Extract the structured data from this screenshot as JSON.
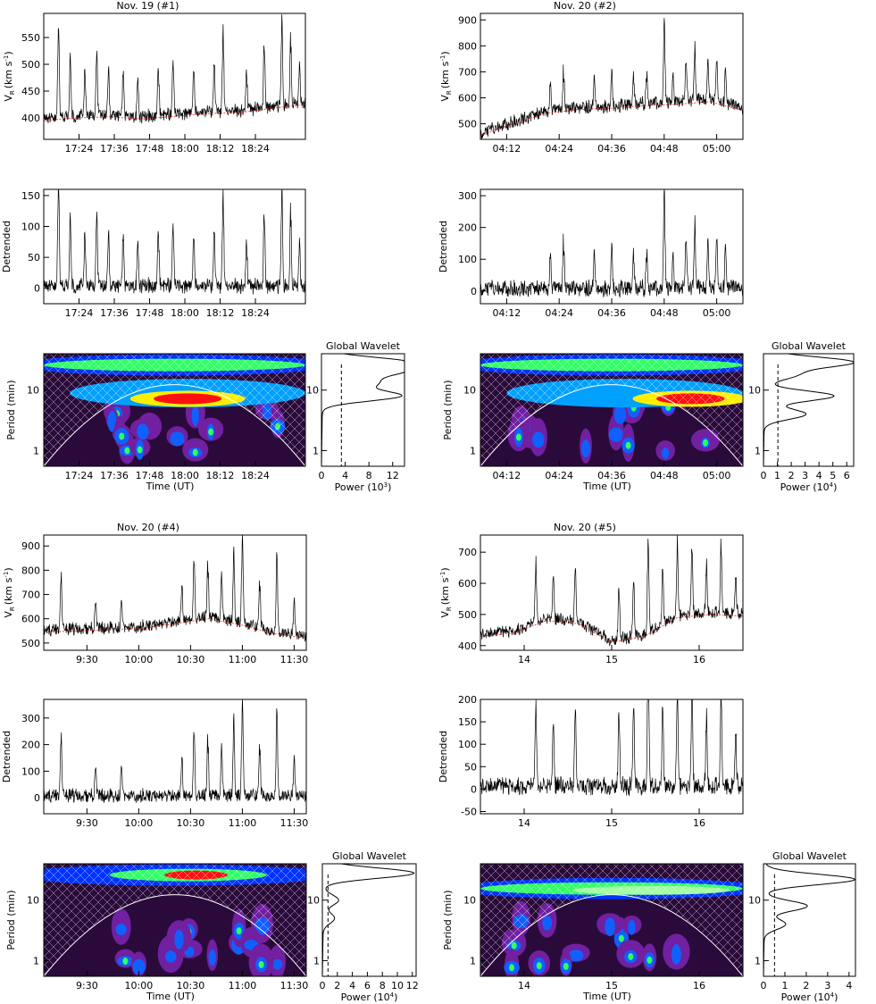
{
  "panels": [
    {
      "title": "Nov. 19 (#1)",
      "vr_ylabel": "V",
      "vr_ylabel_sub": "R",
      "vr_ylabel_unit": "(km s",
      "vr_ylabel_sup": "-1",
      "detrended_ylabel": "Detrended",
      "period_ylabel": "Period (min)",
      "time_xlabel": "Time (UT)",
      "global_title": "Global Wavelet",
      "power_xlabel": "Power (10",
      "power_sup": "3",
      "power_ticks": [
        "0",
        "4",
        "8",
        "12"
      ],
      "power_max": 14
    },
    {
      "title": "Nov. 20 (#2)",
      "vr_ylabel": "V",
      "vr_ylabel_sub": "R",
      "vr_ylabel_unit": "(km s",
      "vr_ylabel_sup": "-1",
      "detrended_ylabel": "Detrended",
      "period_ylabel": "Period (min)",
      "time_xlabel": "Time (UT)",
      "global_title": "Global Wavelet",
      "power_xlabel": "Power (10",
      "power_sup": "4",
      "power_ticks": [
        "0",
        "1",
        "2",
        "3",
        "4",
        "5",
        "6"
      ],
      "power_max": 6.5
    },
    {
      "title": "Nov. 20 (#4)",
      "vr_ylabel": "V",
      "vr_ylabel_sub": "R",
      "vr_ylabel_unit": "(km s",
      "vr_ylabel_sup": "-1",
      "detrended_ylabel": "Detrended",
      "period_ylabel": "Period (min)",
      "time_xlabel": "Time (UT)",
      "global_title": "Global Wavelet",
      "power_xlabel": "Power (10",
      "power_sup": "4",
      "power_ticks": [
        "0",
        "2",
        "4",
        "6",
        "8",
        "10",
        "12"
      ],
      "power_max": 12.5
    },
    {
      "title": "Nov. 20 (#5)",
      "vr_ylabel": "V",
      "vr_ylabel_sub": "R",
      "vr_ylabel_unit": "(km s",
      "vr_ylabel_sup": "-1",
      "detrended_ylabel": "Detrended",
      "period_ylabel": "Period (min)",
      "time_xlabel": "Time (UT)",
      "global_title": "Global Wavelet",
      "power_xlabel": "Power (10",
      "power_sup": "4",
      "power_ticks": [
        "0",
        "1",
        "2",
        "3",
        "4"
      ],
      "power_max": 4.3
    }
  ],
  "chart_data": [
    {
      "type": "line",
      "panel": "Nov. 19 (#1)",
      "x_ticks": [
        "17:24",
        "17:36",
        "17:48",
        "18:00",
        "18:12",
        "18:24"
      ],
      "x_range_min": [
        1032,
        1121
      ],
      "x_tick_min": [
        1044,
        1056,
        1068,
        1080,
        1092,
        1104
      ],
      "vr": {
        "ylim": [
          360,
          595
        ],
        "yticks": [
          400,
          450,
          500,
          550
        ],
        "base": 385,
        "trend": [
          395,
          400,
          402,
          398,
          403,
          408,
          410,
          418,
          425
        ],
        "spikes": [
          [
            1037,
            180
          ],
          [
            1041,
            110
          ],
          [
            1046,
            95
          ],
          [
            1050,
            130
          ],
          [
            1054,
            85
          ],
          [
            1059,
            95
          ],
          [
            1064,
            80
          ],
          [
            1071,
            90
          ],
          [
            1076,
            110
          ],
          [
            1083,
            85
          ],
          [
            1090,
            95
          ],
          [
            1093,
            150
          ],
          [
            1101,
            75
          ],
          [
            1107,
            120
          ],
          [
            1113,
            165
          ],
          [
            1116,
            120
          ],
          [
            1119,
            70
          ]
        ]
      },
      "detrended": {
        "ylim": [
          -25,
          160
        ],
        "yticks": [
          0,
          50,
          100,
          150
        ]
      },
      "wavelet": {
        "period_ticks": [
          "1",
          "10"
        ],
        "global_peaks": [
          [
            29,
            13.5
          ],
          [
            20,
            11
          ],
          [
            13,
            8
          ],
          [
            8,
            13
          ]
        ]
      }
    },
    {
      "type": "line",
      "panel": "Nov. 20 (#2)",
      "x_ticks": [
        "04:12",
        "04:24",
        "04:36",
        "04:48",
        "05:00"
      ],
      "x_range_min": [
        246,
        306
      ],
      "x_tick_min": [
        252,
        264,
        276,
        288,
        300
      ],
      "vr": {
        "ylim": [
          440,
          925
        ],
        "yticks": [
          500,
          600,
          700,
          800,
          900
        ],
        "base": 470,
        "trend": [
          455,
          500,
          540,
          555,
          560,
          570,
          575,
          585,
          550
        ],
        "spikes": [
          [
            262,
            110
          ],
          [
            265,
            160
          ],
          [
            272,
            120
          ],
          [
            276,
            130
          ],
          [
            281,
            110
          ],
          [
            284,
            120
          ],
          [
            288,
            330
          ],
          [
            290,
            110
          ],
          [
            293,
            160
          ],
          [
            295,
            200
          ],
          [
            298,
            160
          ],
          [
            300,
            170
          ],
          [
            302,
            130
          ]
        ]
      },
      "detrended": {
        "ylim": [
          -40,
          320
        ],
        "yticks": [
          0,
          100,
          200,
          300
        ]
      },
      "wavelet": {
        "period_ticks": [
          "1",
          "10"
        ],
        "global_peaks": [
          [
            29,
            6.3
          ],
          [
            18,
            2.2
          ],
          [
            8,
            5
          ],
          [
            4,
            3
          ]
        ]
      }
    },
    {
      "type": "line",
      "panel": "Nov. 20 (#4)",
      "x_ticks": [
        "9:30",
        "10:00",
        "10:30",
        "11:00",
        "11:30"
      ],
      "x_range_min": [
        545,
        697
      ],
      "x_tick_min": [
        570,
        600,
        630,
        660,
        690
      ],
      "vr": {
        "ylim": [
          470,
          945
        ],
        "yticks": [
          500,
          600,
          700,
          800,
          900
        ],
        "base": 535,
        "trend": [
          545,
          550,
          555,
          560,
          580,
          600,
          575,
          540,
          520
        ],
        "spikes": [
          [
            555,
            230
          ],
          [
            575,
            120
          ],
          [
            590,
            110
          ],
          [
            625,
            150
          ],
          [
            632,
            260
          ],
          [
            640,
            220
          ],
          [
            648,
            200
          ],
          [
            655,
            300
          ],
          [
            660,
            380
          ],
          [
            670,
            200
          ],
          [
            680,
            320
          ],
          [
            690,
            150
          ]
        ]
      },
      "detrended": {
        "ylim": [
          -60,
          370
        ],
        "yticks": [
          0,
          100,
          200,
          300
        ]
      },
      "wavelet": {
        "period_ticks": [
          "1",
          "10"
        ],
        "global_peaks": [
          [
            28,
            12
          ],
          [
            10,
            2
          ],
          [
            5,
            1.5
          ]
        ]
      }
    },
    {
      "type": "line",
      "panel": "Nov. 20 (#5)",
      "x_ticks": [
        "14",
        "15",
        "16"
      ],
      "x_range_min": [
        810,
        990
      ],
      "x_tick_min": [
        840,
        900,
        960
      ],
      "vr": {
        "ylim": [
          385,
          755
        ],
        "yticks": [
          400,
          500,
          600,
          700
        ],
        "base": 450,
        "trend": [
          430,
          440,
          480,
          470,
          410,
          430,
          490,
          500,
          495
        ],
        "spikes": [
          [
            848,
            220
          ],
          [
            860,
            150
          ],
          [
            875,
            180
          ],
          [
            905,
            170
          ],
          [
            915,
            180
          ],
          [
            925,
            310
          ],
          [
            935,
            200
          ],
          [
            945,
            260
          ],
          [
            955,
            230
          ],
          [
            965,
            160
          ],
          [
            975,
            230
          ],
          [
            985,
            140
          ]
        ]
      },
      "detrended": {
        "ylim": [
          -55,
          200
        ],
        "yticks": [
          -50,
          0,
          50,
          100,
          150,
          200
        ]
      },
      "wavelet": {
        "period_ticks": [
          "1",
          "10"
        ],
        "global_peaks": [
          [
            22,
            4.2
          ],
          [
            8,
            2
          ],
          [
            4,
            1
          ]
        ]
      }
    }
  ]
}
